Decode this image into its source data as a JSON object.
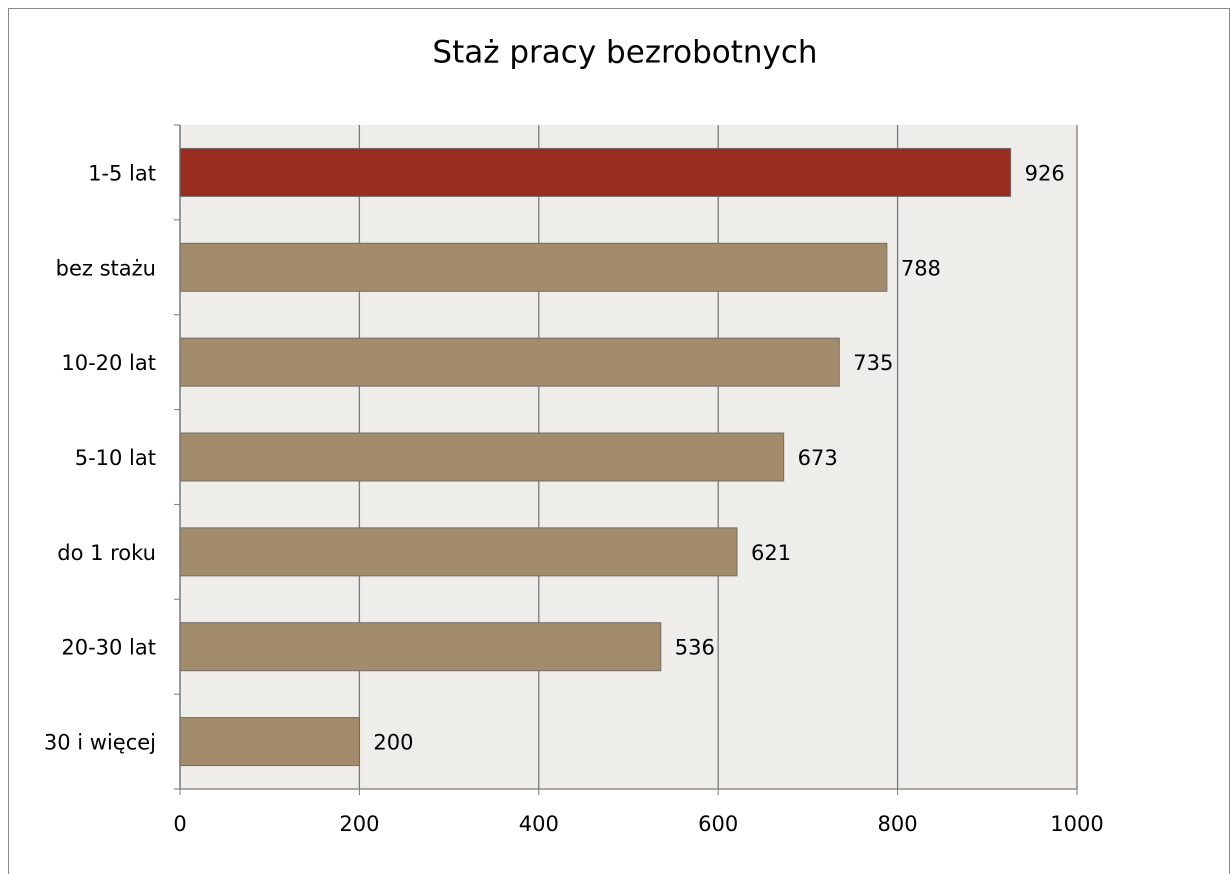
{
  "chart_data": {
    "type": "hbar",
    "title": "Staż pracy bezrobotnych",
    "categories": [
      "1-5 lat",
      "bez stażu",
      "10-20 lat",
      "5-10 lat",
      "do 1 roku",
      "20-30 lat",
      "30 i więcej"
    ],
    "values": [
      926,
      788,
      735,
      673,
      621,
      536,
      200
    ],
    "colors": [
      "#9b2d20",
      "#a38c6b",
      "#a38c6b",
      "#a38c6b",
      "#a38c6b",
      "#a38c6b",
      "#a38c6b"
    ],
    "xlim": [
      0,
      1000
    ],
    "xticks": [
      0,
      200,
      400,
      600,
      800,
      1000
    ],
    "grid": true
  }
}
